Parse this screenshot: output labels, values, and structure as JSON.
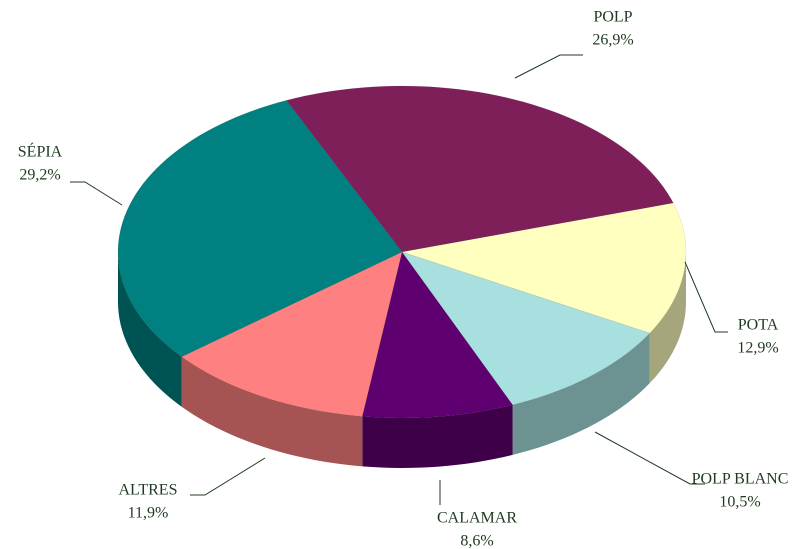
{
  "chart_data": {
    "type": "pie",
    "categories": [
      "POLP",
      "POTA",
      "POLP BLANC",
      "CALAMAR",
      "ALTRES",
      "SÉPIA"
    ],
    "values": [
      26.9,
      12.9,
      10.5,
      8.6,
      11.9,
      29.2
    ],
    "value_labels": [
      "26,9%",
      "12,9%",
      "10,5%",
      "8,6%",
      "11,9%",
      "29,2%"
    ],
    "colors": [
      "#7f1f5a",
      "#ffffc0",
      "#a8e0e0",
      "#5f0070",
      "#ff8080",
      "#008080"
    ]
  }
}
